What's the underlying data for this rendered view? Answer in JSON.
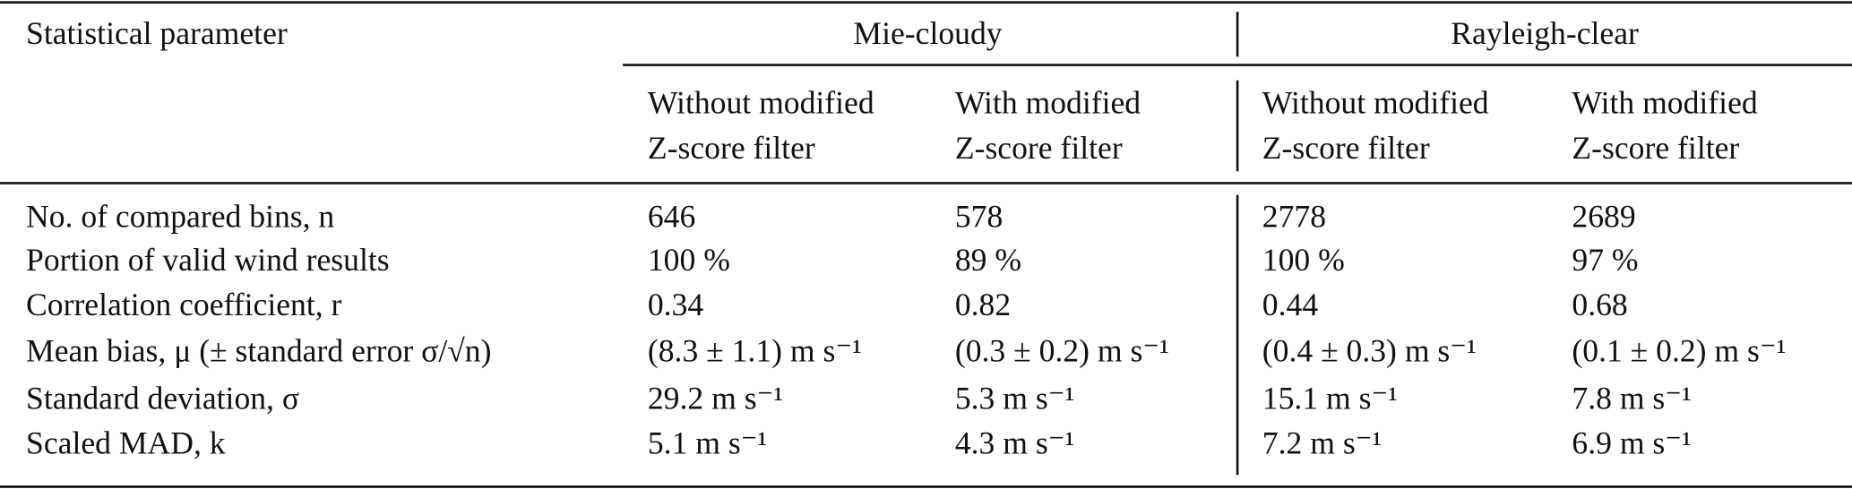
{
  "table": {
    "header": {
      "stub": "Statistical parameter",
      "groups": [
        "Mie-cloudy",
        "Rayleigh-clear"
      ],
      "columns": [
        [
          "Without modified",
          "Z-score filter"
        ],
        [
          "With modified",
          "Z-score filter"
        ],
        [
          "Without modified",
          "Z-score filter"
        ],
        [
          "With modified",
          "Z-score filter"
        ]
      ]
    },
    "rows": [
      [
        "No. of compared bins, n",
        "646",
        "578",
        "2778",
        "2689"
      ],
      [
        "Portion of valid wind results",
        "100 %",
        "89 %",
        "100 %",
        "97 %"
      ],
      [
        "Correlation coefficient, r",
        "0.34",
        "0.82",
        "0.44",
        "0.68"
      ],
      [
        "Mean bias, μ (± standard error σ/√n)",
        "(8.3 ± 1.1) m s⁻¹",
        "(0.3 ± 0.2) m s⁻¹",
        "(0.4 ± 0.3) m s⁻¹",
        "(0.1 ± 0.2) m s⁻¹"
      ],
      [
        "Standard deviation, σ",
        "29.2 m s⁻¹",
        "5.3 m s⁻¹",
        "15.1 m s⁻¹",
        "7.8 m s⁻¹"
      ],
      [
        "Scaled MAD, k",
        "5.1 m s⁻¹",
        "4.3 m s⁻¹",
        "7.2 m s⁻¹",
        "6.9 m s⁻¹"
      ]
    ]
  }
}
